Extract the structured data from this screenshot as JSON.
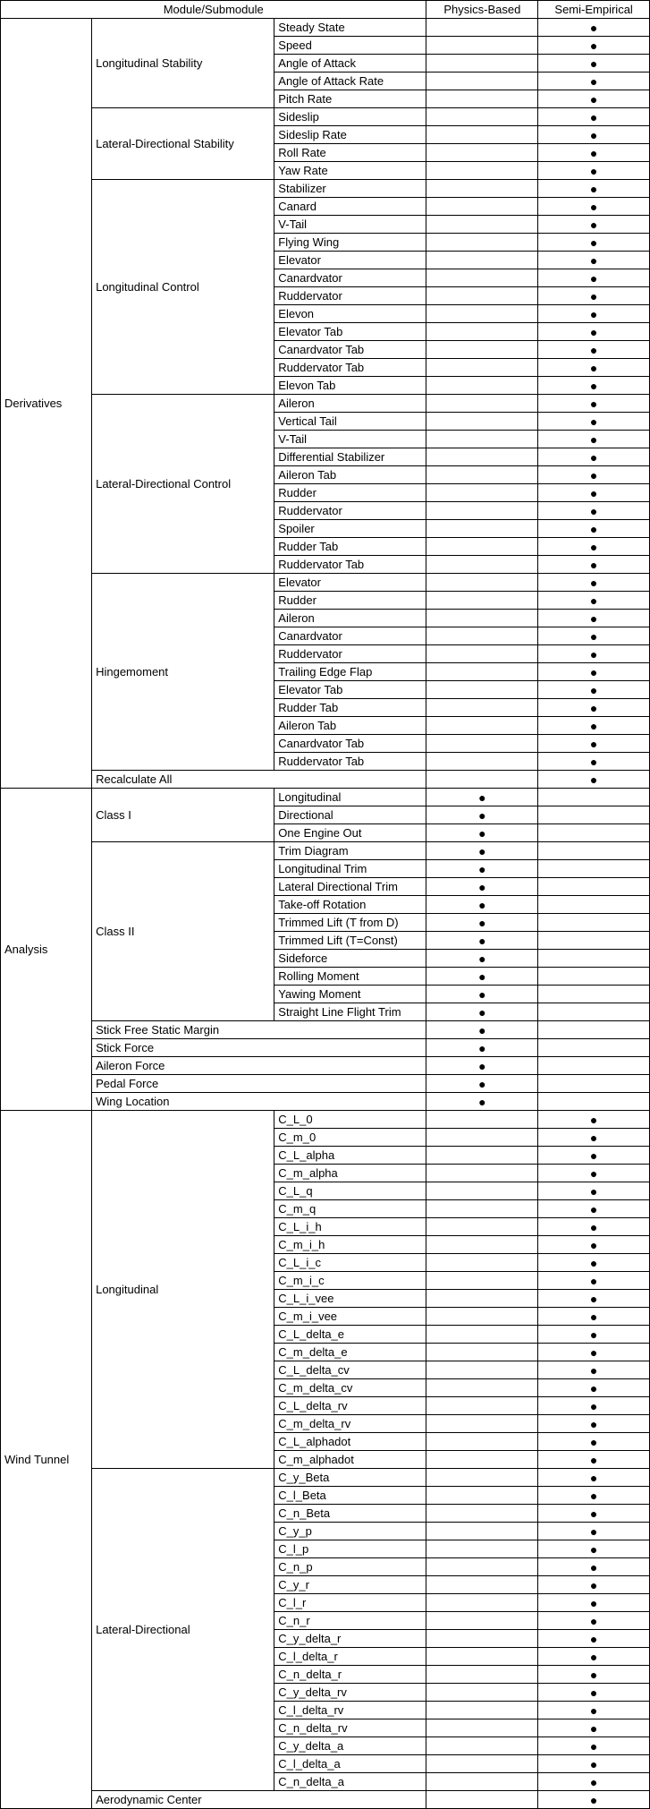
{
  "headers": {
    "module": "Module/Submodule",
    "physics": "Physics-Based",
    "semi": "Semi-Empirical"
  },
  "dot": "●",
  "modules": [
    {
      "name": "Derivatives",
      "groups": [
        {
          "name": "Longitudinal Stability",
          "rows": [
            {
              "n": "Steady State",
              "p": false,
              "s": true
            },
            {
              "n": "Speed",
              "p": false,
              "s": true
            },
            {
              "n": "Angle of Attack",
              "p": false,
              "s": true
            },
            {
              "n": "Angle of Attack Rate",
              "p": false,
              "s": true
            },
            {
              "n": "Pitch Rate",
              "p": false,
              "s": true
            }
          ]
        },
        {
          "name": "Lateral-Directional Stability",
          "rows": [
            {
              "n": "Sideslip",
              "p": false,
              "s": true
            },
            {
              "n": "Sideslip Rate",
              "p": false,
              "s": true
            },
            {
              "n": "Roll Rate",
              "p": false,
              "s": true
            },
            {
              "n": "Yaw Rate",
              "p": false,
              "s": true
            }
          ]
        },
        {
          "name": "Longitudinal Control",
          "rows": [
            {
              "n": "Stabilizer",
              "p": false,
              "s": true
            },
            {
              "n": "Canard",
              "p": false,
              "s": true
            },
            {
              "n": "V-Tail",
              "p": false,
              "s": true
            },
            {
              "n": "Flying Wing",
              "p": false,
              "s": true
            },
            {
              "n": "Elevator",
              "p": false,
              "s": true
            },
            {
              "n": "Canardvator",
              "p": false,
              "s": true
            },
            {
              "n": "Ruddervator",
              "p": false,
              "s": true
            },
            {
              "n": "Elevon",
              "p": false,
              "s": true
            },
            {
              "n": "Elevator Tab",
              "p": false,
              "s": true
            },
            {
              "n": "Canardvator Tab",
              "p": false,
              "s": true
            },
            {
              "n": "Ruddervator Tab",
              "p": false,
              "s": true
            },
            {
              "n": "Elevon Tab",
              "p": false,
              "s": true
            }
          ]
        },
        {
          "name": "Lateral-Directional Control",
          "rows": [
            {
              "n": "Aileron",
              "p": false,
              "s": true
            },
            {
              "n": "Vertical Tail",
              "p": false,
              "s": true
            },
            {
              "n": "V-Tail",
              "p": false,
              "s": true
            },
            {
              "n": "Differential Stabilizer",
              "p": false,
              "s": true
            },
            {
              "n": "Aileron Tab",
              "p": false,
              "s": true
            },
            {
              "n": "Rudder",
              "p": false,
              "s": true
            },
            {
              "n": "Ruddervator",
              "p": false,
              "s": true
            },
            {
              "n": "Spoiler",
              "p": false,
              "s": true
            },
            {
              "n": "Rudder Tab",
              "p": false,
              "s": true
            },
            {
              "n": "Ruddervator Tab",
              "p": false,
              "s": true
            }
          ]
        },
        {
          "name": "Hingemoment",
          "rows": [
            {
              "n": "Elevator",
              "p": false,
              "s": true
            },
            {
              "n": "Rudder",
              "p": false,
              "s": true
            },
            {
              "n": "Aileron",
              "p": false,
              "s": true
            },
            {
              "n": "Canardvator",
              "p": false,
              "s": true
            },
            {
              "n": "Ruddervator",
              "p": false,
              "s": true
            },
            {
              "n": "Trailing Edge Flap",
              "p": false,
              "s": true
            },
            {
              "n": "Elevator Tab",
              "p": false,
              "s": true
            },
            {
              "n": "Rudder Tab",
              "p": false,
              "s": true
            },
            {
              "n": "Aileron Tab",
              "p": false,
              "s": true
            },
            {
              "n": "Canardvator Tab",
              "p": false,
              "s": true
            },
            {
              "n": "Ruddervator Tab",
              "p": false,
              "s": true
            }
          ]
        },
        {
          "name": null,
          "rows": [
            {
              "n": "Recalculate All",
              "p": false,
              "s": true,
              "span": 2
            }
          ]
        }
      ]
    },
    {
      "name": "Analysis",
      "groups": [
        {
          "name": "Class I",
          "rows": [
            {
              "n": "Longitudinal",
              "p": true,
              "s": false
            },
            {
              "n": "Directional",
              "p": true,
              "s": false
            },
            {
              "n": "One Engine Out",
              "p": true,
              "s": false
            }
          ]
        },
        {
          "name": "Class II",
          "rows": [
            {
              "n": "Trim Diagram",
              "p": true,
              "s": false
            },
            {
              "n": "Longitudinal Trim",
              "p": true,
              "s": false
            },
            {
              "n": "Lateral Directional Trim",
              "p": true,
              "s": false
            },
            {
              "n": "Take-off Rotation",
              "p": true,
              "s": false
            },
            {
              "n": "Trimmed Lift (T from D)",
              "p": true,
              "s": false
            },
            {
              "n": "Trimmed Lift (T=Const)",
              "p": true,
              "s": false
            },
            {
              "n": "Sideforce",
              "p": true,
              "s": false
            },
            {
              "n": "Rolling Moment",
              "p": true,
              "s": false
            },
            {
              "n": "Yawing Moment",
              "p": true,
              "s": false
            },
            {
              "n": "Straight Line Flight Trim",
              "p": true,
              "s": false
            }
          ]
        },
        {
          "name": null,
          "rows": [
            {
              "n": "Stick Free Static Margin",
              "p": true,
              "s": false,
              "span": 2
            },
            {
              "n": "Stick Force",
              "p": true,
              "s": false,
              "span": 2
            },
            {
              "n": "Aileron Force",
              "p": true,
              "s": false,
              "span": 2
            },
            {
              "n": "Pedal Force",
              "p": true,
              "s": false,
              "span": 2
            },
            {
              "n": "Wing Location",
              "p": true,
              "s": false,
              "span": 2
            }
          ]
        }
      ]
    },
    {
      "name": "Wind Tunnel",
      "groups": [
        {
          "name": "Longitudinal",
          "rows": [
            {
              "n": "C_L_0",
              "p": false,
              "s": true
            },
            {
              "n": "C_m_0",
              "p": false,
              "s": true
            },
            {
              "n": "C_L_alpha",
              "p": false,
              "s": true
            },
            {
              "n": "C_m_alpha",
              "p": false,
              "s": true
            },
            {
              "n": "C_L_q",
              "p": false,
              "s": true
            },
            {
              "n": "C_m_q",
              "p": false,
              "s": true
            },
            {
              "n": "C_L_i_h",
              "p": false,
              "s": true
            },
            {
              "n": "C_m_i_h",
              "p": false,
              "s": true
            },
            {
              "n": "C_L_i_c",
              "p": false,
              "s": true
            },
            {
              "n": "C_m_i_c",
              "p": false,
              "s": true
            },
            {
              "n": "C_L_i_vee",
              "p": false,
              "s": true
            },
            {
              "n": "C_m_i_vee",
              "p": false,
              "s": true
            },
            {
              "n": "C_L_delta_e",
              "p": false,
              "s": true
            },
            {
              "n": "C_m_delta_e",
              "p": false,
              "s": true
            },
            {
              "n": "C_L_delta_cv",
              "p": false,
              "s": true
            },
            {
              "n": "C_m_delta_cv",
              "p": false,
              "s": true
            },
            {
              "n": "C_L_delta_rv",
              "p": false,
              "s": true
            },
            {
              "n": "C_m_delta_rv",
              "p": false,
              "s": true
            },
            {
              "n": "C_L_alphadot",
              "p": false,
              "s": true
            },
            {
              "n": "C_m_alphadot",
              "p": false,
              "s": true
            }
          ]
        },
        {
          "name": "Lateral-Directional",
          "rows": [
            {
              "n": "C_y_Beta",
              "p": false,
              "s": true
            },
            {
              "n": "C_l_Beta",
              "p": false,
              "s": true
            },
            {
              "n": "C_n_Beta",
              "p": false,
              "s": true
            },
            {
              "n": "C_y_p",
              "p": false,
              "s": true
            },
            {
              "n": "C_l_p",
              "p": false,
              "s": true
            },
            {
              "n": "C_n_p",
              "p": false,
              "s": true
            },
            {
              "n": "C_y_r",
              "p": false,
              "s": true
            },
            {
              "n": "C_l_r",
              "p": false,
              "s": true
            },
            {
              "n": "C_n_r",
              "p": false,
              "s": true
            },
            {
              "n": "C_y_delta_r",
              "p": false,
              "s": true
            },
            {
              "n": "C_l_delta_r",
              "p": false,
              "s": true
            },
            {
              "n": "C_n_delta_r",
              "p": false,
              "s": true
            },
            {
              "n": "C_y_delta_rv",
              "p": false,
              "s": true
            },
            {
              "n": "C_l_delta_rv",
              "p": false,
              "s": true
            },
            {
              "n": "C_n_delta_rv",
              "p": false,
              "s": true
            },
            {
              "n": "C_y_delta_a",
              "p": false,
              "s": true
            },
            {
              "n": "C_l_delta_a",
              "p": false,
              "s": true
            },
            {
              "n": "C_n_delta_a",
              "p": false,
              "s": true
            }
          ]
        },
        {
          "name": null,
          "rows": [
            {
              "n": "Aerodynamic Center",
              "p": false,
              "s": true,
              "span": 2
            }
          ]
        }
      ]
    }
  ]
}
